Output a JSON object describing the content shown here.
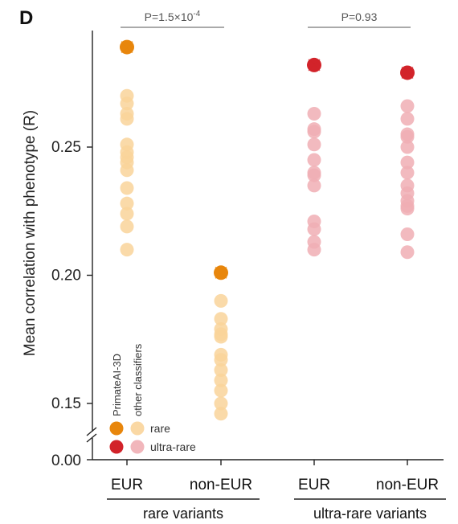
{
  "chart_data": {
    "type": "scatter",
    "panel_label": "D",
    "ylabel": "Mean correlation with phenotype (R)",
    "ylim": [
      0.14,
      0.3
    ],
    "yticks": [
      "0.25",
      "0.20",
      "0.15"
    ],
    "ytick_values": [
      0.25,
      0.2,
      0.15
    ],
    "y_break_label": "0.00",
    "categories": [
      "EUR",
      "non-EUR",
      "EUR",
      "non-EUR"
    ],
    "groups": [
      {
        "label": "rare variants",
        "categories": [
          0,
          1
        ],
        "p_value": "P=1.5×10",
        "p_exponent": "-4"
      },
      {
        "label": "ultra-rare variants",
        "categories": [
          2,
          3
        ],
        "p_value": "P=0.93",
        "p_exponent": ""
      }
    ],
    "colors": {
      "rare_primate": "#e8860c",
      "rare_other": "#f9d49a",
      "ultra_primate": "#d2232a",
      "ultra_other": "#f0aeb4"
    },
    "series": [
      {
        "category_index": 0,
        "variant_class": "rare",
        "primateai": 0.289,
        "other": [
          0.27,
          0.267,
          0.263,
          0.261,
          0.251,
          0.248,
          0.246,
          0.244,
          0.241,
          0.234,
          0.228,
          0.224,
          0.219,
          0.21
        ]
      },
      {
        "category_index": 1,
        "variant_class": "rare",
        "primateai": 0.201,
        "other": [
          0.19,
          0.183,
          0.179,
          0.177,
          0.176,
          0.169,
          0.167,
          0.163,
          0.159,
          0.155,
          0.15,
          0.146
        ]
      },
      {
        "category_index": 2,
        "variant_class": "ultra-rare",
        "primateai": 0.282,
        "other": [
          0.263,
          0.257,
          0.256,
          0.251,
          0.245,
          0.24,
          0.239,
          0.235,
          0.221,
          0.218,
          0.213,
          0.21
        ]
      },
      {
        "category_index": 3,
        "variant_class": "ultra-rare",
        "primateai": 0.279,
        "other": [
          0.266,
          0.261,
          0.255,
          0.254,
          0.25,
          0.244,
          0.24,
          0.235,
          0.232,
          0.229,
          0.227,
          0.226,
          0.216,
          0.209
        ]
      }
    ],
    "legend": {
      "header_primate": "PrimateAI-3D",
      "header_other": "other classifiers",
      "rows": [
        "rare",
        "ultra-rare"
      ],
      "position": "bottom-left"
    }
  }
}
